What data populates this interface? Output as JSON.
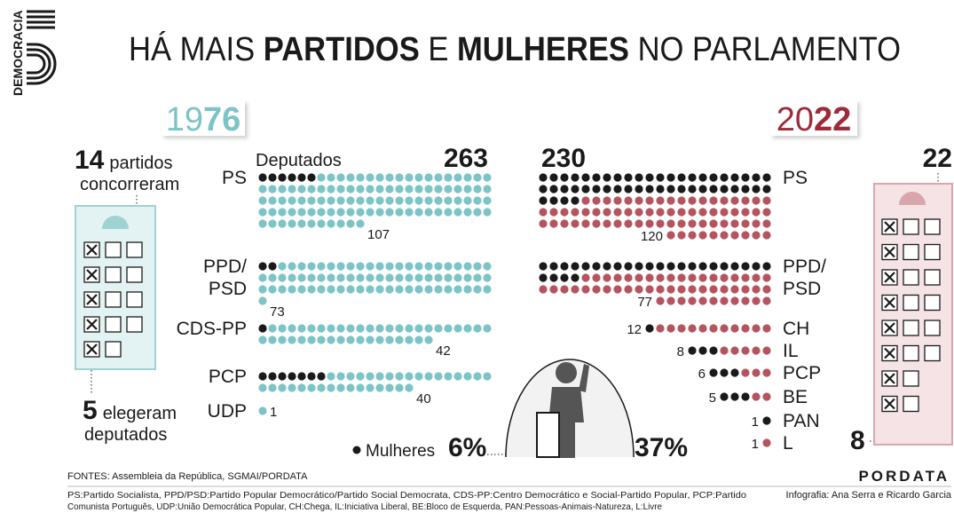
{
  "logo": "DEMOCRACIA",
  "title": {
    "a": "HÁ MAIS ",
    "b": "PARTIDOS",
    "c": " E ",
    "d": "MULHERES",
    "e": " NO PARLAMENTO"
  },
  "y1976": {
    "year_light": "19",
    "year_bold": "76",
    "deputies_label": "Deputados",
    "total": 263,
    "ran": 14,
    "ran_text1": "partidos",
    "ran_text2": "concorreram",
    "elected": 5,
    "elected_text1": "elegeram",
    "elected_text2": "deputados",
    "parties": [
      {
        "name": [
          "PS"
        ],
        "seats": 107,
        "women": 6
      },
      {
        "name": [
          "PPD/",
          "PSD"
        ],
        "seats": 73,
        "women": 2
      },
      {
        "name": [
          "CDS-PP"
        ],
        "seats": 42,
        "women": 1
      },
      {
        "name": [
          "PCP"
        ],
        "seats": 40,
        "women": 7
      },
      {
        "name": [
          "UDP"
        ],
        "seats": 1,
        "women": 0
      }
    ],
    "women_share": "6%"
  },
  "y2022": {
    "year_light": "20",
    "year_bold": "22",
    "total": 230,
    "ran": 22,
    "elected": 8,
    "parties": [
      {
        "name": [
          "PS"
        ],
        "seats": 120,
        "women": 48
      },
      {
        "name": [
          "PPD/",
          "PSD"
        ],
        "seats": 77,
        "women": 26
      },
      {
        "name": [
          "CH"
        ],
        "seats": 12,
        "women": 1
      },
      {
        "name": [
          "IL"
        ],
        "seats": 8,
        "women": 3
      },
      {
        "name": [
          "PCP"
        ],
        "seats": 6,
        "women": 3
      },
      {
        "name": [
          "BE"
        ],
        "seats": 5,
        "women": 3
      },
      {
        "name": [
          "PAN"
        ],
        "seats": 1,
        "women": 1
      },
      {
        "name": [
          "L"
        ],
        "seats": 1,
        "women": 0
      }
    ],
    "women_share": "37%"
  },
  "legend": "Mulheres",
  "source": "FONTES: Assembleia da República, SGMAI/PORDATA",
  "brand": "PORDATA",
  "notes": [
    "PS:Partido Socialista, PPD/PSD:Partido Popular Democrático/Partido Social Democrata, CDS-PP:Centro Democrático e Social-Partido Popular, PCP:Partido",
    "Comunista Português, UDP:União Democrática Popular, CH:Chega, IL:Iniciativa Liberal, BE:Bloco de Esquerda, PAN:Pessoas-Animais-Natureza, L:Livre"
  ],
  "credit": "Infografia: Ana Serra e Ricardo Garcia"
}
